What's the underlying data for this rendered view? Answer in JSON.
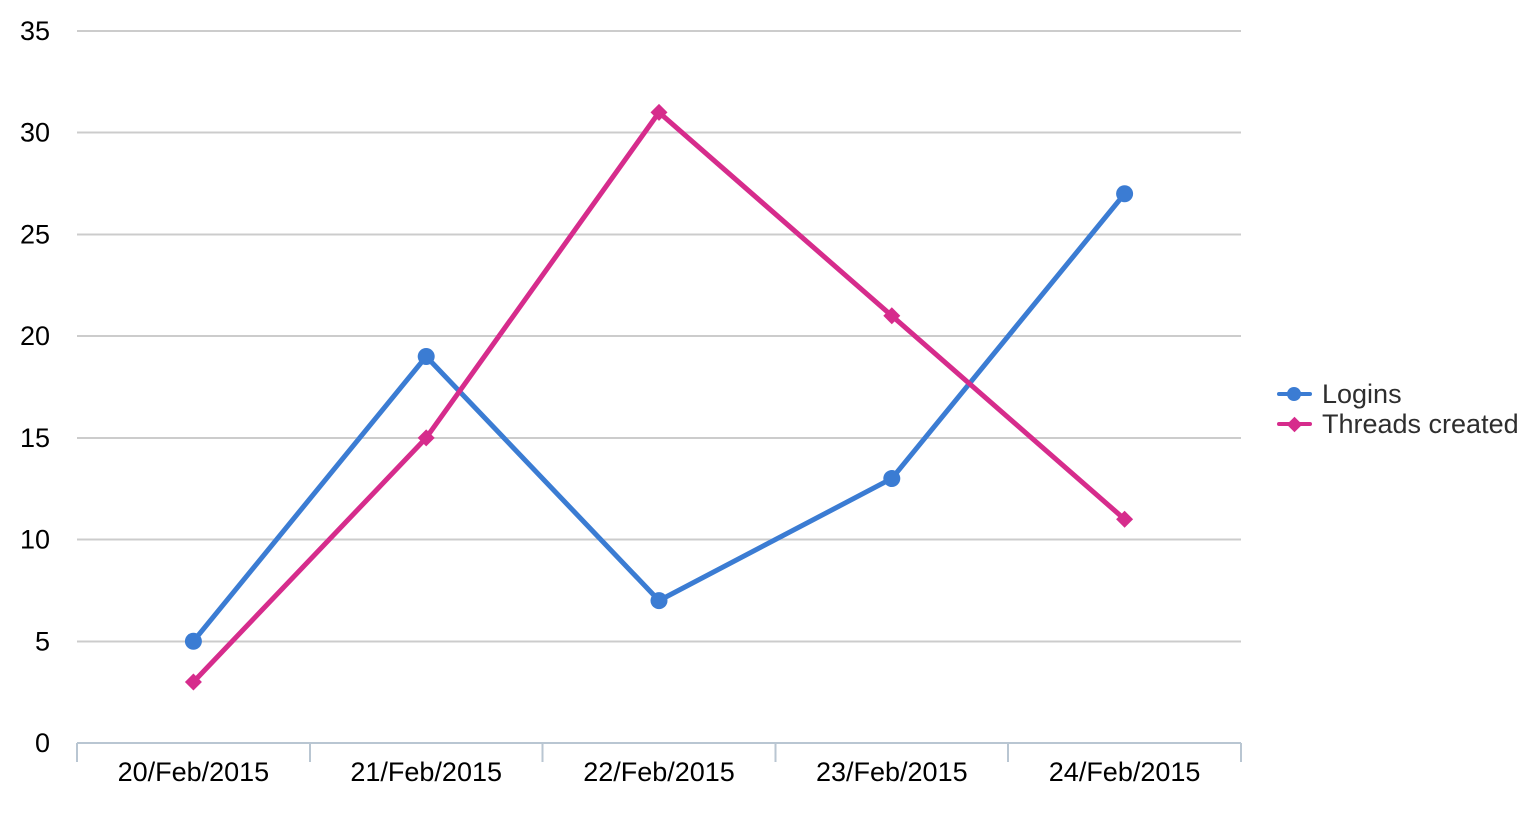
{
  "chart_data": {
    "type": "line",
    "title": "",
    "xlabel": "",
    "ylabel": "",
    "categories": [
      "20/Feb/2015",
      "21/Feb/2015",
      "22/Feb/2015",
      "23/Feb/2015",
      "24/Feb/2015"
    ],
    "series": [
      {
        "name": "Logins",
        "values": [
          5,
          19,
          7,
          13,
          27
        ],
        "color": "#3b7cd3",
        "marker": "circle"
      },
      {
        "name": "Threads created",
        "values": [
          3,
          15,
          31,
          21,
          11
        ],
        "color": "#d62c8c",
        "marker": "diamond"
      }
    ],
    "ylim": [
      0,
      35
    ],
    "yticks": [
      0,
      5,
      10,
      15,
      20,
      25,
      30,
      35
    ],
    "grid": true,
    "legend_position": "right"
  },
  "colors": {
    "background": "#ffffff",
    "grid": "#cccccc",
    "axis": "#b9c6d2",
    "tick_label": "#000000",
    "legend_text": "#2e2e2e"
  }
}
